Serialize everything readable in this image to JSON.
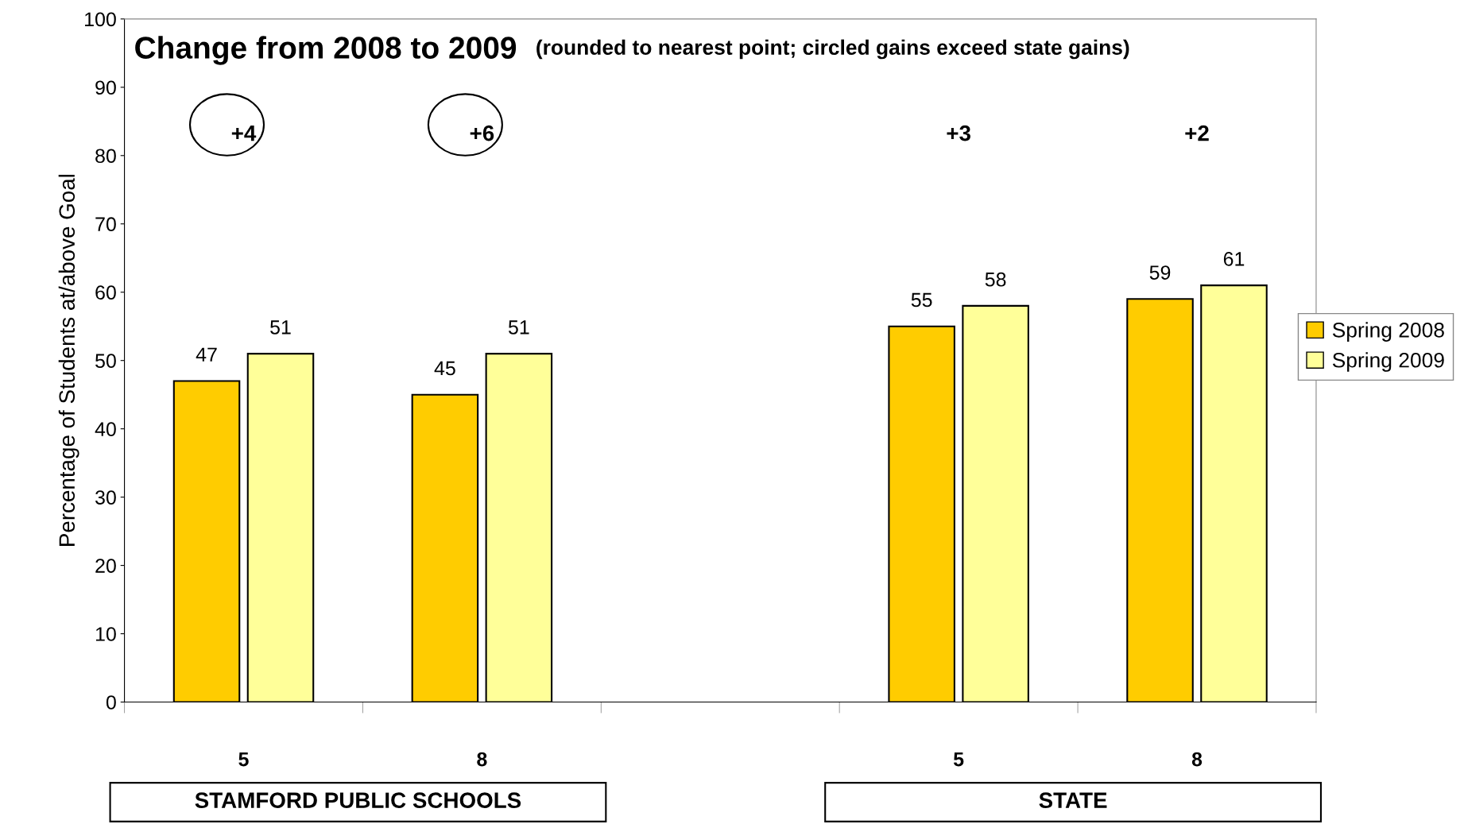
{
  "chart_data": {
    "type": "bar",
    "title": "Change from 2008 to 2009",
    "subtitle": "(rounded to nearest point; circled gains exceed state gains)",
    "ylabel": "Percentage of Students at/above Goal",
    "categories": [
      "5",
      "8",
      null,
      "5",
      "8"
    ],
    "series": [
      {
        "name": "Spring 2008",
        "color": "#ffcc00",
        "values": [
          47,
          45,
          null,
          55,
          59
        ]
      },
      {
        "name": "Spring 2009",
        "color": "#ffff99",
        "values": [
          51,
          51,
          null,
          58,
          61
        ]
      }
    ],
    "ylim": [
      0,
      100
    ],
    "yticks": [
      0,
      10,
      20,
      30,
      40,
      50,
      60,
      70,
      80,
      90,
      100
    ],
    "data_labels": true,
    "grid": false,
    "legend": "right",
    "annotations": [
      "+4",
      "+6",
      "+3",
      "+2",
      "STAMFORD PUBLIC SCHOOLS",
      "STATE"
    ]
  }
}
